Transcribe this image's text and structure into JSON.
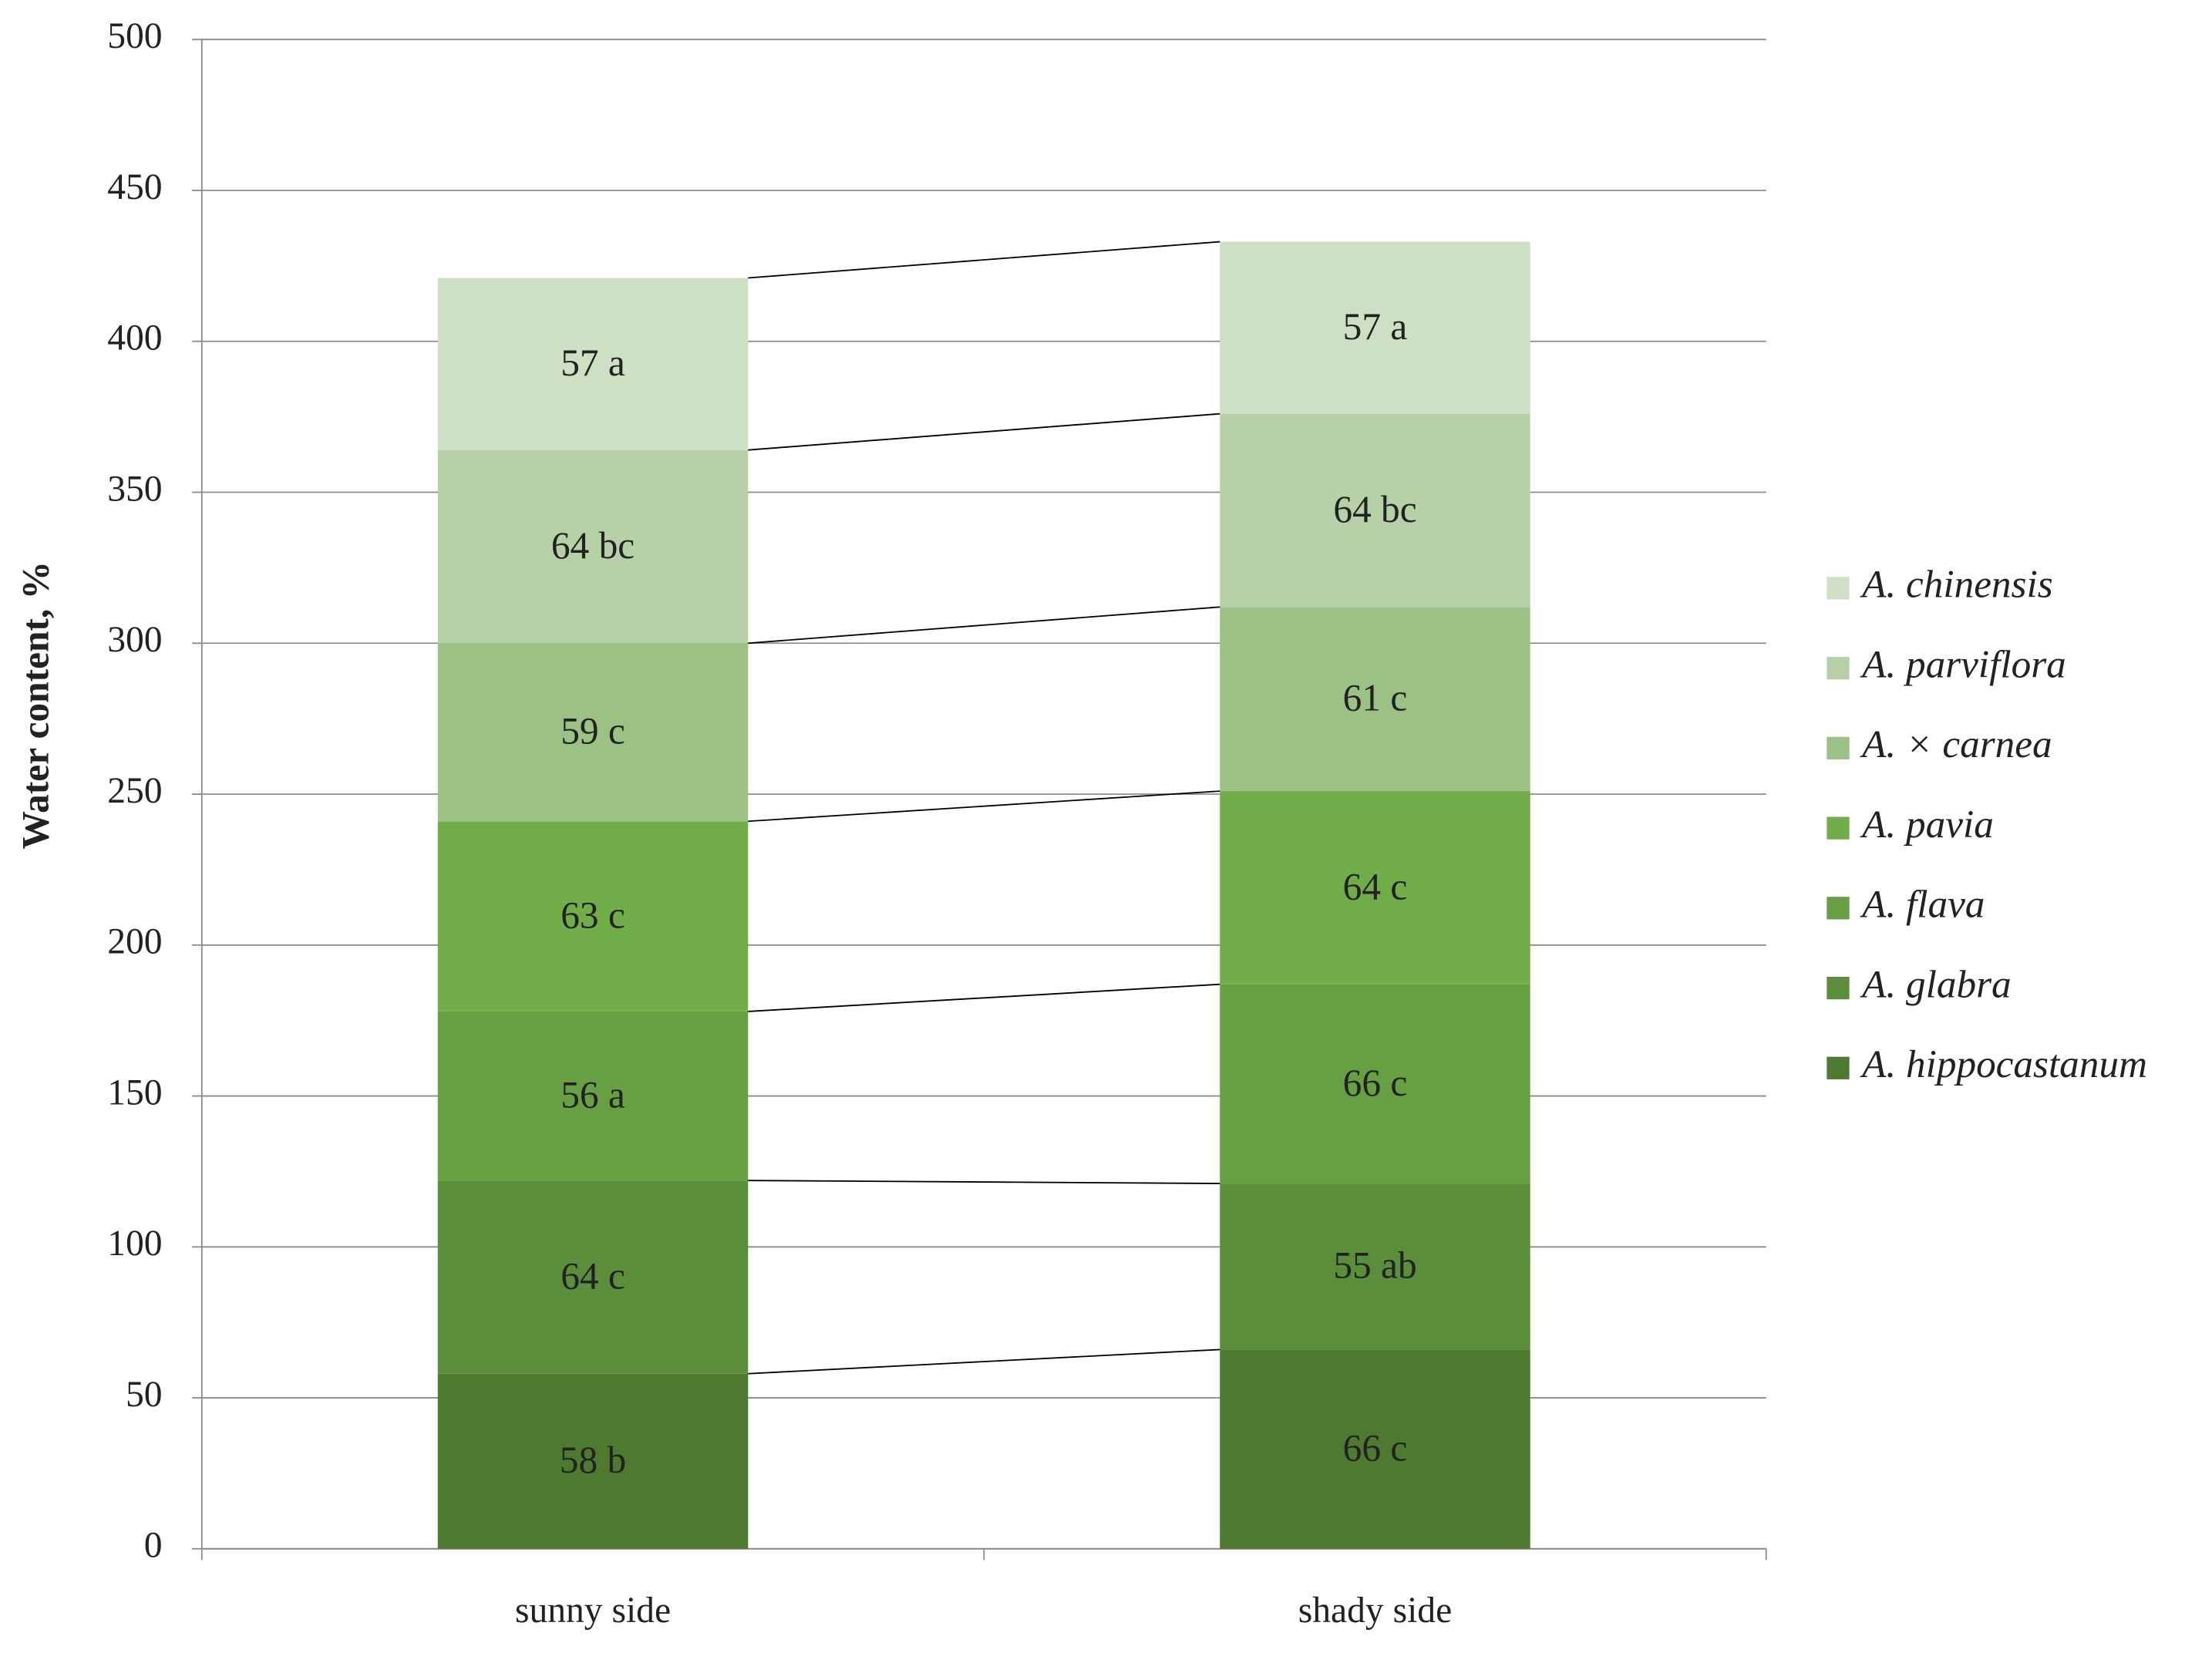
{
  "chart_data": {
    "type": "stacked_bar",
    "y_label": "Water content, %",
    "categories": [
      "sunny side",
      "shady side"
    ],
    "series": [
      {
        "name": "A. hippocastanum",
        "color": "#4e7a30",
        "values": [
          58,
          66
        ],
        "value_labels": [
          "58 b",
          "66 c"
        ]
      },
      {
        "name": "A. glabra",
        "color": "#5b8e3a",
        "values": [
          64,
          55
        ],
        "value_labels": [
          "64 c",
          "55 ab"
        ]
      },
      {
        "name": "A. flava",
        "color": "#67a042",
        "values": [
          56,
          66
        ],
        "value_labels": [
          "56 a",
          "66 c"
        ]
      },
      {
        "name": "A. pavia",
        "color": "#71ad48",
        "values": [
          63,
          64
        ],
        "value_labels": [
          "63 c",
          "64 c"
        ]
      },
      {
        "name": "A. × carnea",
        "color": "#9bc185",
        "values": [
          59,
          61
        ],
        "value_labels": [
          "59 c",
          "61 c"
        ]
      },
      {
        "name": "A. parviflora",
        "color": "#b6d1a7",
        "values": [
          64,
          64
        ],
        "value_labels": [
          "64 bc",
          "64 bc"
        ]
      },
      {
        "name": "A. chinensis",
        "color": "#cde0c3",
        "values": [
          57,
          57
        ],
        "value_labels": [
          "57 a",
          "57 a"
        ]
      }
    ],
    "ylim": [
      0,
      500
    ],
    "yticks": [
      0,
      50,
      100,
      150,
      200,
      250,
      300,
      350,
      400,
      450,
      500
    ],
    "grid": true,
    "series_lines": true,
    "legend": "right"
  }
}
